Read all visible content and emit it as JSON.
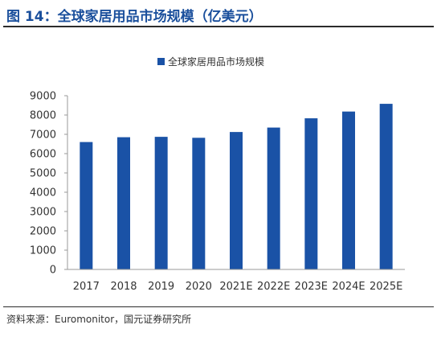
{
  "figure": {
    "title": "图 14：全球家居用品市场规模（亿美元）",
    "source": "资料来源：Euromonitor，国元证券研究所"
  },
  "colors": {
    "title": "#1a4f9c",
    "bar": "#1a52a6",
    "axis": "#9a9a9a",
    "text": "#333333"
  },
  "chart_data": {
    "type": "bar",
    "title": "",
    "xlabel": "",
    "ylabel": "",
    "categories": [
      "2017",
      "2018",
      "2019",
      "2020",
      "2021E",
      "2022E",
      "2023E",
      "2024E",
      "2025E"
    ],
    "series": [
      {
        "name": "全球家居用品市场规模",
        "values": [
          6600,
          6850,
          6870,
          6820,
          7120,
          7350,
          7830,
          8180,
          8580
        ]
      }
    ],
    "ylim": [
      0,
      9000
    ],
    "yticks": [
      "0",
      "1000",
      "2000",
      "3000",
      "4000",
      "5000",
      "6000",
      "7000",
      "8000",
      "9000"
    ],
    "grid": false,
    "legend_position": "top"
  }
}
